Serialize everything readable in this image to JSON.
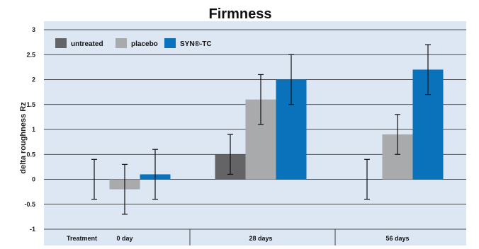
{
  "chart_data": {
    "type": "bar",
    "title": "Firmness",
    "ylabel": "delta roughness Rz",
    "ylim": [
      -1,
      3
    ],
    "yticks": [
      "-1",
      "-0.5",
      "0",
      "0.5",
      "1",
      "1.5",
      "2",
      "2.5",
      "3"
    ],
    "grid": true,
    "legend_position": "top-left",
    "row_label": "Treatment",
    "categories": [
      "0 day",
      "28 days",
      "56 days"
    ],
    "series": [
      {
        "name": "untreated",
        "color": "#646466",
        "values": [
          0,
          0.5,
          0
        ],
        "errors": [
          0.4,
          0.4,
          0.4
        ]
      },
      {
        "name": "placebo",
        "color": "#a9aaac",
        "values": [
          -0.2,
          1.6,
          0.9
        ],
        "errors": [
          0.5,
          0.5,
          0.4
        ]
      },
      {
        "name": "SYN®-TC",
        "color": "#0a72bb",
        "values": [
          0.1,
          2.0,
          2.2
        ],
        "errors": [
          0.5,
          0.5,
          0.5
        ]
      }
    ]
  }
}
